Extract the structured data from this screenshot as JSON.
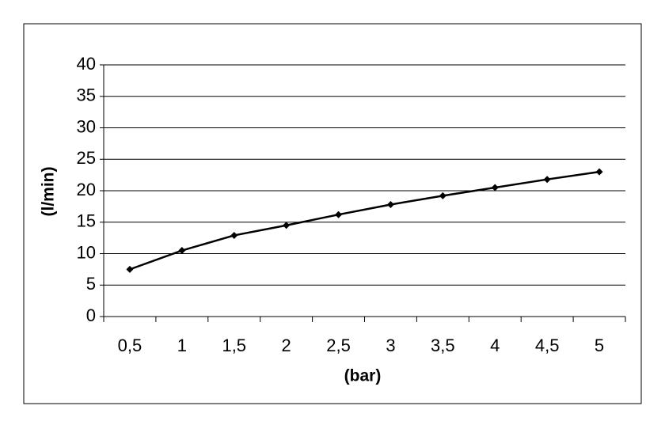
{
  "chart_data": {
    "type": "line",
    "x_label": "(bar)",
    "y_label": "(l/min)",
    "categories": [
      "0,5",
      "1",
      "1,5",
      "2",
      "2,5",
      "3",
      "3,5",
      "4",
      "4,5",
      "5"
    ],
    "values": [
      7.5,
      10.5,
      12.9,
      14.5,
      16.2,
      17.8,
      19.2,
      20.5,
      21.8,
      23.0
    ],
    "color": "#000000",
    "ylim": [
      0,
      40
    ],
    "yticks": [
      0,
      5,
      10,
      15,
      20,
      25,
      30,
      35,
      40
    ],
    "grid": true
  }
}
